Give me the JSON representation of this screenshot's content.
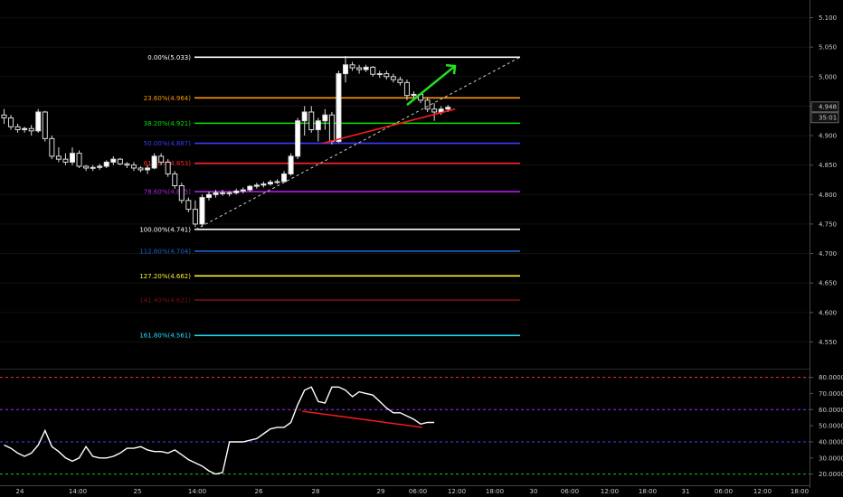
{
  "chart_data": [
    {
      "type": "candlestick",
      "name": "price",
      "ylim": [
        4.52,
        5.13
      ],
      "y_ticks": [
        "5.100",
        "5.050",
        "5.000",
        "4.950",
        "4.900",
        "4.850",
        "4.800",
        "4.750",
        "4.700",
        "4.650",
        "4.600",
        "4.550"
      ],
      "x_ticks": [
        "24",
        "14:00",
        "25",
        "14:00",
        "26",
        "28",
        "29",
        "06:00",
        "12:00",
        "18:00",
        "30",
        "06:00",
        "12:00",
        "18:00",
        "31",
        "06:00",
        "12:00",
        "18:00"
      ],
      "price_label": "4.948",
      "time_label": "35:01",
      "fib_levels": [
        {
          "label": "0.00%(5.033)",
          "value": 5.033,
          "color": "#ffffff"
        },
        {
          "label": "23.60%(4.964)",
          "value": 4.964,
          "color": "#ff9800"
        },
        {
          "label": "38.20%(4.921)",
          "value": 4.921,
          "color": "#00e600"
        },
        {
          "label": "50.00%(4.887)",
          "value": 4.887,
          "color": "#3a3aff"
        },
        {
          "label": "61.80%(4.853)",
          "value": 4.853,
          "color": "#ff2222"
        },
        {
          "label": "78.60%(4.805)",
          "value": 4.805,
          "color": "#b020e0"
        },
        {
          "label": "100.00%(4.741)",
          "value": 4.741,
          "color": "#ffffff"
        },
        {
          "label": "112.80%(4.704)",
          "value": 4.704,
          "color": "#1f5fd0"
        },
        {
          "label": "127.20%(4.662)",
          "value": 4.662,
          "color": "#ffee33"
        },
        {
          "label": "141.40%(4.621)",
          "value": 4.621,
          "color": "#7a1010"
        },
        {
          "label": "161.80%(4.561)",
          "value": 4.561,
          "color": "#20e0ff"
        }
      ],
      "candles": [
        [
          4.935,
          4.945,
          4.92,
          4.93
        ],
        [
          4.93,
          4.935,
          4.91,
          4.915
        ],
        [
          4.915,
          4.92,
          4.905,
          4.91
        ],
        [
          4.91,
          4.915,
          4.905,
          4.912
        ],
        [
          4.912,
          4.918,
          4.9,
          4.908
        ],
        [
          4.908,
          4.945,
          4.905,
          4.94
        ],
        [
          4.94,
          4.942,
          4.89,
          4.895
        ],
        [
          4.895,
          4.9,
          4.86,
          4.865
        ],
        [
          4.865,
          4.88,
          4.855,
          4.86
        ],
        [
          4.86,
          4.87,
          4.85,
          4.855
        ],
        [
          4.855,
          4.88,
          4.85,
          4.87
        ],
        [
          4.87,
          4.875,
          4.845,
          4.848
        ],
        [
          4.848,
          4.85,
          4.84,
          4.845
        ],
        [
          4.845,
          4.85,
          4.84,
          4.846
        ],
        [
          4.846,
          4.852,
          4.842,
          4.848
        ],
        [
          4.848,
          4.858,
          4.845,
          4.855
        ],
        [
          4.855,
          4.865,
          4.85,
          4.86
        ],
        [
          4.86,
          4.862,
          4.85,
          4.852
        ],
        [
          4.852,
          4.855,
          4.845,
          4.85
        ],
        [
          4.85,
          4.855,
          4.84,
          4.845
        ],
        [
          4.845,
          4.848,
          4.838,
          4.842
        ],
        [
          4.842,
          4.85,
          4.835,
          4.845
        ],
        [
          4.845,
          4.87,
          4.843,
          4.865
        ],
        [
          4.865,
          4.87,
          4.85,
          4.855
        ],
        [
          4.855,
          4.86,
          4.83,
          4.835
        ],
        [
          4.835,
          4.84,
          4.81,
          4.815
        ],
        [
          4.815,
          4.82,
          4.785,
          4.79
        ],
        [
          4.79,
          4.795,
          4.77,
          4.775
        ],
        [
          4.775,
          4.79,
          4.745,
          4.75
        ],
        [
          4.75,
          4.8,
          4.745,
          4.795
        ],
        [
          4.795,
          4.805,
          4.79,
          4.8
        ],
        [
          4.8,
          4.808,
          4.795,
          4.803
        ],
        [
          4.803,
          4.808,
          4.798,
          4.802
        ],
        [
          4.802,
          4.806,
          4.797,
          4.803
        ],
        [
          4.803,
          4.81,
          4.8,
          4.806
        ],
        [
          4.806,
          4.812,
          4.802,
          4.808
        ],
        [
          4.808,
          4.816,
          4.805,
          4.814
        ],
        [
          4.814,
          4.82,
          4.81,
          4.816
        ],
        [
          4.816,
          4.822,
          4.812,
          4.818
        ],
        [
          4.818,
          4.825,
          4.815,
          4.821
        ],
        [
          4.821,
          4.826,
          4.818,
          4.822
        ],
        [
          4.822,
          4.84,
          4.82,
          4.835
        ],
        [
          4.835,
          4.87,
          4.832,
          4.865
        ],
        [
          4.865,
          4.93,
          4.86,
          4.925
        ],
        [
          4.925,
          4.95,
          4.9,
          4.94
        ],
        [
          4.94,
          4.95,
          4.905,
          4.91
        ],
        [
          4.91,
          4.93,
          4.89,
          4.925
        ],
        [
          4.925,
          4.945,
          4.91,
          4.935
        ],
        [
          4.935,
          4.94,
          4.885,
          4.89
        ],
        [
          4.89,
          5.01,
          4.888,
          5.005
        ],
        [
          5.005,
          5.035,
          4.99,
          5.02
        ],
        [
          5.02,
          5.025,
          5.01,
          5.015
        ],
        [
          5.015,
          5.02,
          5.005,
          5.012
        ],
        [
          5.012,
          5.02,
          5.008,
          5.016
        ],
        [
          5.016,
          5.018,
          5.0,
          5.004
        ],
        [
          5.004,
          5.01,
          4.998,
          5.005
        ],
        [
          5.005,
          5.01,
          4.995,
          5.0
        ],
        [
          5.0,
          5.005,
          4.99,
          4.995
        ],
        [
          4.995,
          5.0,
          4.985,
          4.99
        ],
        [
          4.99,
          4.995,
          4.96,
          4.968
        ],
        [
          4.968,
          4.975,
          4.96,
          4.97
        ],
        [
          4.97,
          4.972,
          4.955,
          4.96
        ],
        [
          4.96,
          4.965,
          4.94,
          4.945
        ],
        [
          4.945,
          4.955,
          4.925,
          4.94
        ],
        [
          4.94,
          4.95,
          4.935,
          4.945
        ],
        [
          4.945,
          4.952,
          4.94,
          4.948
        ]
      ],
      "drawings": {
        "red_trendline": [
          [
            4.887
          ],
          [
            4.945
          ]
        ],
        "green_arrow": "up"
      }
    },
    {
      "type": "line",
      "name": "oscillator",
      "ylim": [
        17,
        82
      ],
      "y_ticks": [
        "80.0000",
        "70.0000",
        "60.0000",
        "50.0000",
        "40.0000",
        "30.0000",
        "20.0000"
      ],
      "levels": [
        {
          "value": 80,
          "color": "#ff3030"
        },
        {
          "value": 60,
          "color": "#9b30ff"
        },
        {
          "value": 40,
          "color": "#2f4fff"
        },
        {
          "value": 20,
          "color": "#20c020"
        }
      ],
      "values": [
        38,
        36,
        33,
        31,
        33,
        38,
        47,
        37,
        34,
        30,
        28,
        30,
        37,
        31,
        30,
        30,
        31,
        33,
        36,
        36,
        37,
        35,
        34,
        34,
        33,
        35,
        32,
        29,
        27,
        25,
        22,
        20,
        21,
        40,
        40,
        40,
        41,
        42,
        45,
        48,
        49,
        49,
        52,
        63,
        72,
        74,
        65,
        64,
        74,
        74,
        72,
        68,
        71,
        70,
        69,
        65,
        61,
        58,
        58,
        56,
        54,
        51,
        52,
        52
      ],
      "trendline": [
        [
          59
        ],
        [
          49
        ]
      ]
    }
  ]
}
